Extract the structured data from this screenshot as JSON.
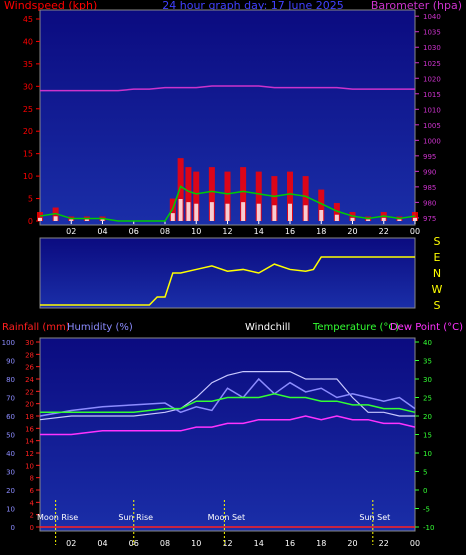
{
  "top": {
    "title_left": "Windspeed (kph)",
    "title_center": "24 hour graph day: 17 June 2025",
    "title_right": "Barometer (hpa)",
    "wind_ticks": [
      "0",
      "5",
      "10",
      "15",
      "20",
      "25",
      "30",
      "35",
      "40",
      "45"
    ],
    "baro_ticks": [
      "975",
      "980",
      "985",
      "990",
      "995",
      "1000",
      "1005",
      "1010",
      "1015",
      "1020",
      "1025",
      "1030",
      "1035",
      "1040"
    ],
    "hour_ticks": [
      "02",
      "04",
      "06",
      "08",
      "10",
      "12",
      "14",
      "16",
      "18",
      "20",
      "22",
      "00"
    ]
  },
  "middle": {
    "direction_labels": [
      "S",
      "E",
      "N",
      "W",
      "S"
    ]
  },
  "bottom": {
    "label_rainfall": "Rainfall (mm)",
    "label_humidity": "Humidity (%)",
    "label_windchill": "Windchill",
    "label_temperature": "Temperature (°C)",
    "label_dewpoint": "Dew Point (°C)",
    "humidity_ticks": [
      "0",
      "10",
      "20",
      "30",
      "40",
      "50",
      "60",
      "70",
      "80",
      "90",
      "100"
    ],
    "rain_ticks": [
      "0",
      "2",
      "4",
      "6",
      "8",
      "10",
      "12",
      "14",
      "16",
      "18",
      "20",
      "22",
      "24",
      "26",
      "28",
      "30"
    ],
    "temp_ticks": [
      "-10",
      "-5",
      "0",
      "5",
      "10",
      "15",
      "20",
      "25",
      "30",
      "35",
      "40"
    ],
    "hour_ticks": [
      "02",
      "04",
      "06",
      "08",
      "10",
      "12",
      "14",
      "16",
      "18",
      "20",
      "22",
      "00"
    ],
    "events": [
      {
        "label": "Moon Rise",
        "hour": 1.0
      },
      {
        "label": "Sun Rise",
        "hour": 6.0
      },
      {
        "label": "Moon Set",
        "hour": 11.8
      },
      {
        "label": "Sun Set",
        "hour": 21.3
      }
    ]
  },
  "colors": {
    "background": "#000000",
    "plot_top": "#0b0b80",
    "plot_bottom": "#1a2ea8",
    "wind_gust": "#ff0000",
    "wind_avg": "#00cc00",
    "wind_fill": "#ffffff",
    "barometer": "#cc33cc",
    "direction": "#ffff00",
    "humidity": "#8c8cff",
    "windchill": "#c8c8ff",
    "temperature": "#33ff33",
    "dewpoint": "#ff33ff",
    "rainfall": "#ff2020",
    "event_line": "#ffff00"
  },
  "chart_data": [
    {
      "type": "line",
      "title": "24 hour graph day: 17 June 2025",
      "xlabel": "",
      "ylabel": "Windspeed (kph)",
      "y2label": "Barometer (hpa)",
      "x_hours": [
        0,
        1,
        2,
        3,
        4,
        5,
        6,
        7,
        8,
        8.5,
        9,
        9.5,
        10,
        11,
        12,
        13,
        14,
        15,
        16,
        17,
        18,
        19,
        20,
        21,
        22,
        23,
        24
      ],
      "xlim": [
        0,
        24
      ],
      "ylim": [
        0,
        47
      ],
      "y2lim": [
        974,
        1042
      ],
      "series": [
        {
          "name": "Windspeed (kph)",
          "values": [
            2,
            3,
            1,
            1,
            1,
            0,
            0,
            0,
            0,
            5,
            14,
            12,
            11,
            12,
            11,
            12,
            11,
            10,
            11,
            10,
            7,
            4,
            2,
            1,
            2,
            1,
            2
          ]
        },
        {
          "name": "Barometer (hpa)",
          "values": [
            1016,
            1016,
            1016,
            1016,
            1016,
            1016,
            1016.5,
            1016.5,
            1017,
            1017,
            1017,
            1017,
            1017,
            1017.5,
            1017.5,
            1017.5,
            1017.5,
            1017,
            1017,
            1017,
            1017,
            1017,
            1016.5,
            1016.5,
            1016.5,
            1016.5,
            1016.5
          ]
        }
      ]
    },
    {
      "type": "line",
      "title": "",
      "ylabel": "Wind direction",
      "x_hours": [
        0,
        7,
        7.5,
        8,
        8.5,
        9,
        10,
        11,
        12,
        13,
        14,
        15,
        16,
        17,
        17.5,
        18,
        19,
        20,
        21,
        22,
        23,
        24
      ],
      "direction_deg": [
        0,
        0,
        45,
        45,
        180,
        180,
        200,
        220,
        190,
        200,
        180,
        230,
        200,
        190,
        200,
        270,
        270,
        270,
        270,
        270,
        270,
        270
      ],
      "xlim": [
        0,
        24
      ]
    },
    {
      "type": "line",
      "title": "",
      "x_hours": [
        0,
        2,
        4,
        6,
        8,
        9,
        10,
        11,
        12,
        13,
        14,
        15,
        16,
        17,
        18,
        19,
        20,
        21,
        22,
        23,
        24
      ],
      "xlim": [
        0,
        24
      ],
      "series": [
        {
          "name": "Humidity (%)",
          "values": [
            60,
            63,
            65,
            66,
            67,
            62,
            65,
            63,
            75,
            70,
            80,
            72,
            78,
            73,
            75,
            70,
            72,
            70,
            68,
            70,
            64
          ]
        },
        {
          "name": "Windchill",
          "values": [
            19,
            20,
            20,
            20,
            21,
            22,
            25,
            29,
            31,
            32,
            32,
            32,
            32,
            30,
            30,
            30,
            25,
            21,
            21,
            20,
            20
          ]
        },
        {
          "name": "Temperature (°C)",
          "values": [
            21,
            21,
            21,
            21,
            22,
            22,
            24,
            24,
            25,
            25,
            25,
            26,
            25,
            25,
            24,
            24,
            23,
            23,
            22,
            22,
            21
          ]
        },
        {
          "name": "Dew Point (°C)",
          "values": [
            15,
            15,
            16,
            16,
            16,
            16,
            17,
            17,
            18,
            18,
            19,
            19,
            19,
            20,
            19,
            20,
            19,
            19,
            18,
            18,
            17
          ]
        },
        {
          "name": "Rainfall (mm)",
          "values": [
            0,
            0,
            0,
            0,
            0,
            0,
            0,
            0,
            0,
            0,
            0,
            0,
            0,
            0,
            0,
            0,
            0,
            0,
            0,
            0,
            0
          ]
        }
      ],
      "ylim_humidity": [
        0,
        100
      ],
      "ylim_rain": [
        0,
        30
      ],
      "ylim_temp": [
        -10,
        40
      ]
    }
  ]
}
